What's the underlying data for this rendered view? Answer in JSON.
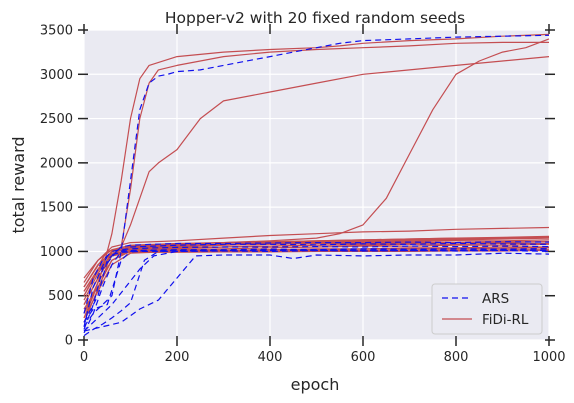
{
  "chart_data": {
    "type": "line",
    "title": "Hopper-v2 with 20 fixed random seeds",
    "xlabel": "epoch",
    "ylabel": "total reward",
    "xlim": [
      0,
      1000
    ],
    "ylim": [
      0,
      3500
    ],
    "xticks": [
      0,
      200,
      400,
      600,
      800,
      1000
    ],
    "yticks": [
      0,
      500,
      1000,
      1500,
      2000,
      2500,
      3000,
      3500
    ],
    "grid": true,
    "legend_position": "lower-right",
    "colors": {
      "ARS": "#1010ee",
      "FiDi-RL": "#c44e52",
      "background": "#eaeaf2",
      "grid": "#ffffff"
    },
    "series_groups": [
      {
        "name": "ARS",
        "style": "dashed",
        "runs": [
          {
            "x": [
              0,
              20,
              40,
              60,
              80,
              100,
              120,
              140,
              160,
              180,
              200,
              250,
              300,
              350,
              400,
              450,
              500,
              550,
              600,
              700,
              800,
              900,
              1000
            ],
            "y": [
              150,
              300,
              400,
              500,
              1000,
              1800,
              2600,
              2900,
              2980,
              3000,
              3030,
              3050,
              3100,
              3150,
              3200,
              3250,
              3300,
              3350,
              3380,
              3400,
              3420,
              3430,
              3440
            ]
          },
          {
            "x": [
              0,
              30,
              50,
              80,
              100,
              150,
              200,
              300,
              400,
              500,
              600,
              700,
              800,
              900,
              1000
            ],
            "y": [
              200,
              500,
              900,
              1050,
              1070,
              1080,
              1090,
              1090,
              1095,
              1100,
              1100,
              1105,
              1100,
              1110,
              1105
            ]
          },
          {
            "x": [
              0,
              20,
              40,
              60,
              80,
              100,
              150,
              200,
              300,
              400,
              500,
              600,
              700,
              800,
              900,
              1000
            ],
            "y": [
              80,
              300,
              600,
              850,
              1000,
              1050,
              1060,
              1070,
              1080,
              1080,
              1075,
              1085,
              1080,
              1090,
              1085,
              1080
            ]
          },
          {
            "x": [
              0,
              20,
              40,
              60,
              80,
              100,
              150,
              200,
              300,
              400,
              500,
              600,
              700,
              800,
              900,
              1000
            ],
            "y": [
              300,
              700,
              900,
              1000,
              1020,
              1030,
              1040,
              1045,
              1050,
              1050,
              1055,
              1050,
              1060,
              1055,
              1060,
              1055
            ]
          },
          {
            "x": [
              0,
              30,
              60,
              90,
              120,
              150,
              200,
              300,
              400,
              500,
              600,
              700,
              800,
              900,
              1000
            ],
            "y": [
              100,
              250,
              400,
              600,
              800,
              950,
              1000,
              1010,
              1020,
              1020,
              1025,
              1020,
              1030,
              1025,
              1030
            ]
          },
          {
            "x": [
              0,
              20,
              40,
              70,
              100,
              150,
              200,
              300,
              400,
              500,
              600,
              700,
              800,
              900,
              1000
            ],
            "y": [
              120,
              400,
              800,
              1000,
              1010,
              1015,
              1020,
              1020,
              1025,
              1020,
              1030,
              1025,
              1030,
              1025,
              1030
            ]
          },
          {
            "x": [
              0,
              20,
              50,
              80,
              120,
              200,
              300,
              400,
              500,
              600,
              700,
              800,
              900,
              1000
            ],
            "y": [
              150,
              600,
              950,
              990,
              1000,
              1000,
              1005,
              1000,
              1010,
              1005,
              1010,
              1005,
              1010,
              1000
            ]
          },
          {
            "x": [
              0,
              40,
              80,
              120,
              160,
              200,
              240,
              300,
              400,
              450,
              500,
              600,
              700,
              800,
              900,
              1000
            ],
            "y": [
              100,
              150,
              200,
              350,
              450,
              700,
              950,
              960,
              960,
              920,
              960,
              950,
              960,
              960,
              980,
              970
            ]
          },
          {
            "x": [
              0,
              20,
              50,
              80,
              100,
              150,
              200,
              300,
              400,
              500,
              600,
              700,
              800,
              900,
              1000
            ],
            "y": [
              200,
              350,
              400,
              900,
              1000,
              1010,
              1010,
              1010,
              1015,
              1010,
              1010,
              1015,
              1010,
              1015,
              1010
            ]
          },
          {
            "x": [
              0,
              20,
              40,
              60,
              80,
              100,
              130,
              160,
              200,
              300,
              400,
              500,
              600,
              700,
              800,
              900,
              1000
            ],
            "y": [
              50,
              120,
              180,
              250,
              330,
              420,
              900,
              1000,
              1010,
              1010,
              1010,
              1015,
              1010,
              1010,
              1010,
              1015,
              1010
            ]
          }
        ]
      },
      {
        "name": "FiDi-RL",
        "style": "solid",
        "runs": [
          {
            "x": [
              0,
              20,
              40,
              60,
              80,
              100,
              120,
              140,
              200,
              300,
              400,
              500,
              550,
              600,
              700,
              800,
              900,
              1000
            ],
            "y": [
              250,
              500,
              800,
              1200,
              1800,
              2500,
              2950,
              3100,
              3200,
              3250,
              3280,
              3300,
              3320,
              3350,
              3380,
              3400,
              3430,
              3450
            ]
          },
          {
            "x": [
              0,
              20,
              40,
              60,
              80,
              100,
              120,
              140,
              160,
              200,
              250,
              300,
              400,
              500,
              600,
              700,
              800,
              900,
              1000
            ],
            "y": [
              200,
              450,
              700,
              1000,
              1050,
              1700,
              2500,
              2900,
              3050,
              3100,
              3150,
              3200,
              3250,
              3280,
              3300,
              3320,
              3350,
              3360,
              3360
            ]
          },
          {
            "x": [
              0,
              20,
              40,
              60,
              80,
              100,
              120,
              140,
              160,
              200,
              250,
              300,
              400,
              500,
              600,
              700,
              800,
              900,
              1000
            ],
            "y": [
              300,
              500,
              800,
              1000,
              1050,
              1300,
              1600,
              1900,
              2000,
              2150,
              2500,
              2700,
              2800,
              2900,
              3000,
              3050,
              3100,
              3150,
              3200
            ]
          },
          {
            "x": [
              0,
              50,
              100,
              200,
              300,
              400,
              500,
              550,
              600,
              650,
              700,
              750,
              800,
              850,
              900,
              950,
              1000
            ],
            "y": [
              600,
              1000,
              1050,
              1080,
              1100,
              1120,
              1150,
              1200,
              1300,
              1600,
              2100,
              2600,
              3000,
              3150,
              3250,
              3300,
              3400
            ]
          },
          {
            "x": [
              0,
              30,
              60,
              100,
              200,
              300,
              400,
              500,
              600,
              700,
              800,
              900,
              1000
            ],
            "y": [
              700,
              900,
              1050,
              1100,
              1120,
              1150,
              1180,
              1200,
              1220,
              1230,
              1250,
              1260,
              1270
            ]
          },
          {
            "x": [
              0,
              30,
              60,
              100,
              200,
              300,
              400,
              500,
              600,
              700,
              800,
              900,
              1000
            ],
            "y": [
              500,
              800,
              1000,
              1060,
              1080,
              1100,
              1110,
              1120,
              1130,
              1140,
              1150,
              1160,
              1170
            ]
          },
          {
            "x": [
              0,
              30,
              60,
              100,
              200,
              300,
              400,
              500,
              600,
              700,
              800,
              900,
              1000
            ],
            "y": [
              400,
              700,
              950,
              1030,
              1050,
              1070,
              1090,
              1100,
              1110,
              1120,
              1130,
              1140,
              1150
            ]
          },
          {
            "x": [
              0,
              30,
              60,
              100,
              200,
              300,
              400,
              500,
              600,
              700,
              800,
              900,
              1000
            ],
            "y": [
              600,
              850,
              1000,
              1040,
              1060,
              1080,
              1100,
              1110,
              1120,
              1130,
              1140,
              1150,
              1160
            ]
          },
          {
            "x": [
              0,
              30,
              60,
              100,
              200,
              300,
              400,
              500,
              600,
              700,
              800,
              900,
              1000
            ],
            "y": [
              300,
              650,
              900,
              1010,
              1030,
              1050,
              1060,
              1070,
              1080,
              1090,
              1100,
              1100,
              1110
            ]
          },
          {
            "x": [
              0,
              30,
              60,
              100,
              200,
              300,
              400,
              500,
              600,
              700,
              800,
              900,
              1000
            ],
            "y": [
              450,
              750,
              980,
              1040,
              1070,
              1080,
              1090,
              1100,
              1100,
              1110,
              1120,
              1120,
              1130
            ]
          },
          {
            "x": [
              0,
              30,
              60,
              100,
              200,
              300,
              400,
              500,
              600,
              700,
              800,
              900,
              1000
            ],
            "y": [
              550,
              800,
              1000,
              1050,
              1060,
              1070,
              1080,
              1090,
              1090,
              1100,
              1100,
              1110,
              1110
            ]
          },
          {
            "x": [
              0,
              30,
              60,
              100,
              200,
              300,
              400,
              500,
              600,
              700,
              800,
              900,
              1000
            ],
            "y": [
              350,
              600,
              900,
              1000,
              1020,
              1030,
              1040,
              1050,
              1060,
              1060,
              1070,
              1070,
              1080
            ]
          },
          {
            "x": [
              0,
              30,
              60,
              100,
              200,
              300,
              400,
              500,
              600,
              700,
              800,
              900,
              1000
            ],
            "y": [
              500,
              780,
              960,
              1020,
              1040,
              1050,
              1060,
              1070,
              1070,
              1080,
              1080,
              1090,
              1090
            ]
          },
          {
            "x": [
              0,
              30,
              60,
              100,
              200,
              300,
              400,
              500,
              600,
              700,
              800,
              900,
              1000
            ],
            "y": [
              650,
              900,
              1020,
              1070,
              1090,
              1100,
              1110,
              1120,
              1130,
              1140,
              1150,
              1150,
              1160
            ]
          },
          {
            "x": [
              0,
              30,
              60,
              100,
              200,
              300,
              400,
              500,
              600,
              700,
              800,
              900,
              1000
            ],
            "y": [
              250,
              550,
              850,
              980,
              1000,
              1010,
              1020,
              1030,
              1030,
              1040,
              1040,
              1050,
              1050
            ]
          },
          {
            "x": [
              0,
              30,
              60,
              100,
              200,
              300,
              400,
              500,
              600,
              700,
              800,
              900,
              1000
            ],
            "y": [
              400,
              700,
              950,
              1000,
              1010,
              1015,
              1020,
              1020,
              1025,
              1030,
              1030,
              1035,
              1040
            ]
          },
          {
            "x": [
              0,
              30,
              60,
              100,
              200,
              300,
              400,
              500,
              600,
              700,
              800,
              900,
              1000
            ],
            "y": [
              600,
              850,
              980,
              1000,
              1000,
              1005,
              1005,
              1010,
              1010,
              1015,
              1015,
              1020,
              1020
            ]
          },
          {
            "x": [
              0,
              30,
              60,
              100,
              200,
              300,
              400,
              500,
              600,
              700,
              800,
              900,
              1000
            ],
            "y": [
              550,
              800,
              950,
              990,
              990,
              995,
              995,
              1000,
              1000,
              1000,
              1005,
              1005,
              1010
            ]
          }
        ]
      }
    ]
  }
}
